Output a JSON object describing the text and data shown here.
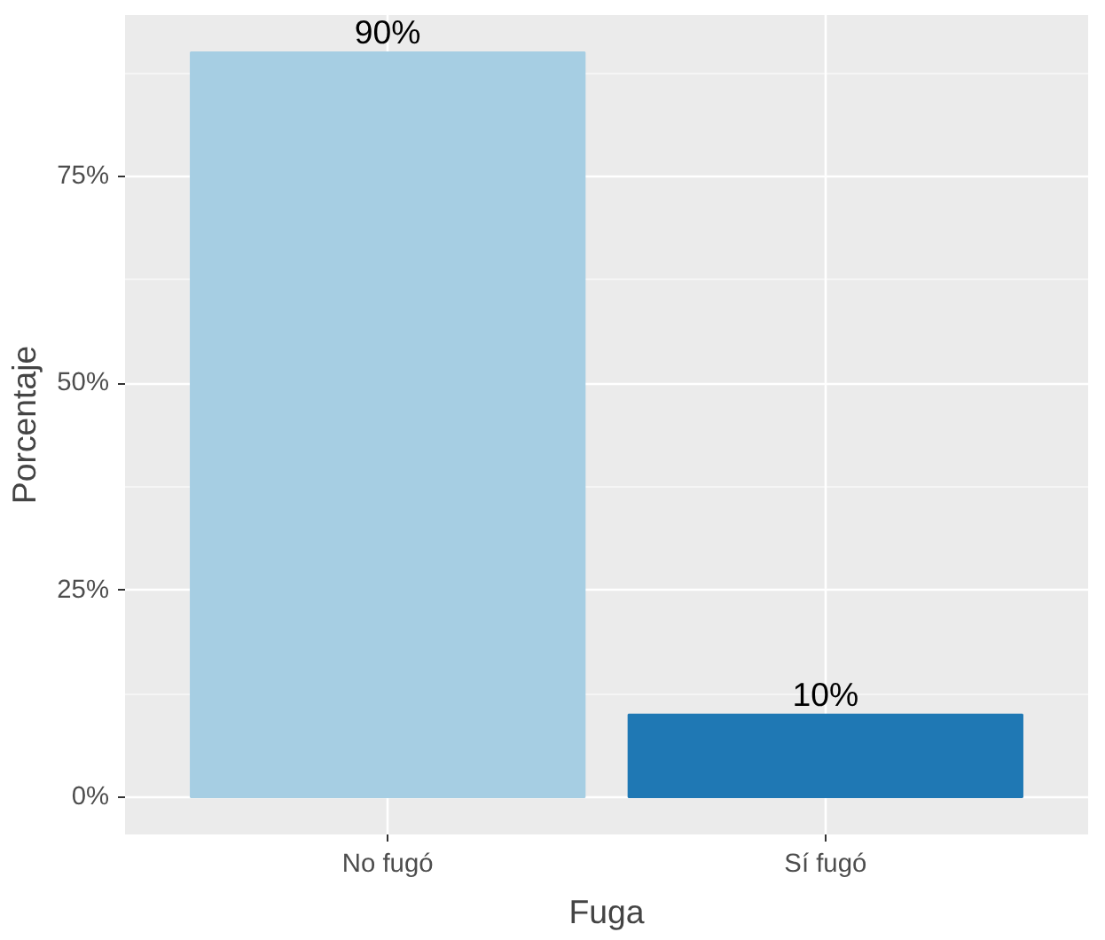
{
  "chart_data": {
    "type": "bar",
    "xlabel": "Fuga",
    "ylabel": "Porcentaje",
    "categories": [
      "No fugó",
      "Sí fugó"
    ],
    "values": [
      90,
      10
    ],
    "colors": [
      "#a6cee3",
      "#1f78b4"
    ],
    "value_labels": [
      "90%",
      "10%"
    ],
    "ylim": [
      -4.5,
      94.5
    ],
    "yticks": [
      {
        "value": 0,
        "label": "0%"
      },
      {
        "value": 25,
        "label": "25%"
      },
      {
        "value": 50,
        "label": "50%"
      },
      {
        "value": 75,
        "label": "75%"
      }
    ],
    "grid": true
  }
}
